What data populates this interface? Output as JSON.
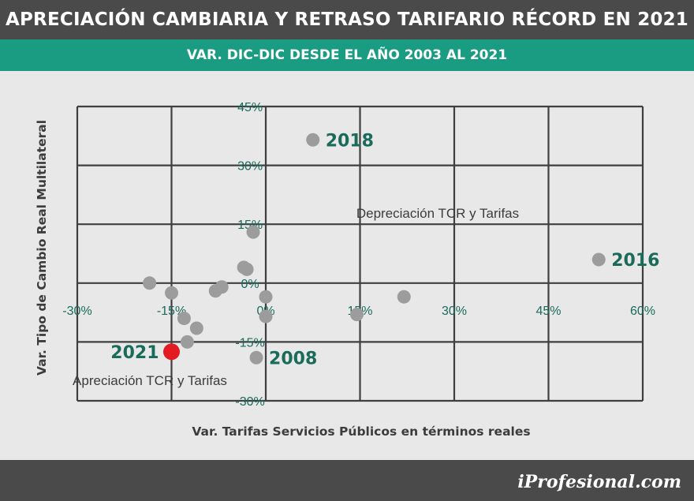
{
  "header": {
    "title": "APRECIACIÓN CAMBIARIA Y RETRASO TARIFARIO RÉCORD EN 2021",
    "subtitle": "VAR. DIC-DIC DESDE EL AÑO 2003 AL 2021"
  },
  "footer": {
    "brand": "iProfesional.com"
  },
  "colors": {
    "title_bg": "#4a4a4a",
    "subtitle_bg": "#1a9c83",
    "tick_text": "#1a6b5a",
    "point": "#9c9c9c",
    "highlight_point": "#e21b23",
    "label_text": "#1a6b5a"
  },
  "chart_data": {
    "type": "scatter",
    "xlabel": "Var. Tarifas Servicios Públicos en términos reales",
    "ylabel": "Var. Tipo de Cambio Real Multilateral",
    "xlim": [
      -30,
      60
    ],
    "ylim": [
      -30,
      45
    ],
    "x_ticks": [
      "-30%",
      "-15%",
      "0%",
      "15%",
      "30%",
      "45%",
      "60%"
    ],
    "y_ticks": [
      "45%",
      "30%",
      "15%",
      "0%",
      "-15%",
      "-30%"
    ],
    "grid": true,
    "annotations": [
      "Depreciación TCR y Tarifas",
      "Apreciación TCR y Tarifas"
    ],
    "points": [
      {
        "x": 7.5,
        "y": 36.5,
        "label": "2018"
      },
      {
        "x": -2.0,
        "y": 13.0,
        "label": ""
      },
      {
        "x": -3.5,
        "y": 4.0,
        "label": ""
      },
      {
        "x": -3.0,
        "y": 3.5,
        "label": ""
      },
      {
        "x": 53.0,
        "y": 6.0,
        "label": "2016"
      },
      {
        "x": -18.5,
        "y": 0.0,
        "label": ""
      },
      {
        "x": -15.0,
        "y": -2.5,
        "label": ""
      },
      {
        "x": -8.0,
        "y": -2.0,
        "label": ""
      },
      {
        "x": -7.0,
        "y": -1.0,
        "label": ""
      },
      {
        "x": 0.0,
        "y": -3.5,
        "label": ""
      },
      {
        "x": 22.0,
        "y": -3.5,
        "label": ""
      },
      {
        "x": 14.5,
        "y": -8.0,
        "label": ""
      },
      {
        "x": 0.0,
        "y": -8.5,
        "label": ""
      },
      {
        "x": -13.0,
        "y": -9.0,
        "label": ""
      },
      {
        "x": -11.0,
        "y": -11.5,
        "label": ""
      },
      {
        "x": -12.5,
        "y": -15.0,
        "label": ""
      },
      {
        "x": -1.5,
        "y": -19.0,
        "label": "2008"
      },
      {
        "x": -15.0,
        "y": -17.5,
        "label": "2021",
        "highlight": true
      }
    ]
  }
}
